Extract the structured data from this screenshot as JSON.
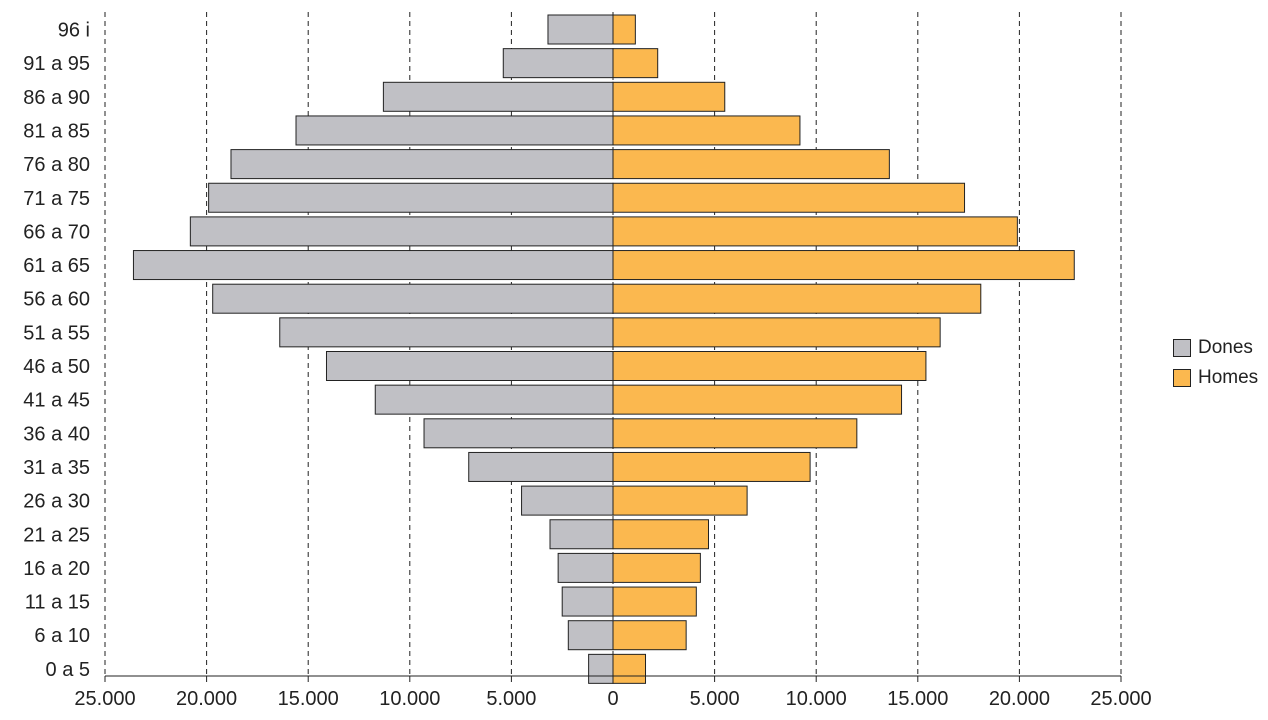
{
  "chart_data": {
    "type": "bar",
    "orientation": "horizontal-population-pyramid",
    "categories": [
      "96 i",
      "91 a 95",
      "86 a 90",
      "81 a 85",
      "76 a 80",
      "71 a 75",
      "66 a 70",
      "61 a 65",
      "56 a 60",
      "51 a 55",
      "46 a 50",
      "41 a 45",
      "36 a 40",
      "31 a 35",
      "26 a 30",
      "21 a 25",
      "16 a 20",
      "11 a 15",
      "6 a 10",
      "0 a 5"
    ],
    "series": [
      {
        "name": "Dones",
        "side": "left",
        "color": "#c0c0c5",
        "values": [
          3200,
          5400,
          11300,
          15600,
          18800,
          19900,
          20800,
          23600,
          19700,
          16400,
          14100,
          11700,
          9300,
          7100,
          4500,
          3100,
          2700,
          2500,
          2200,
          1200
        ]
      },
      {
        "name": "Homes",
        "side": "right",
        "color": "#fbb84f",
        "values": [
          1100,
          2200,
          5500,
          9200,
          13600,
          17300,
          19900,
          22700,
          18100,
          16100,
          15400,
          14200,
          12000,
          9700,
          6600,
          4700,
          4300,
          4100,
          3600,
          1600
        ]
      }
    ],
    "x_ticks": [
      "25.000",
      "20.000",
      "15.000",
      "10.000",
      "5.000",
      "0",
      "5.000",
      "10.000",
      "15.000",
      "20.000",
      "25.000"
    ],
    "xlim": [
      -25000,
      25000
    ],
    "grid": "vertical-dashed",
    "legend_position": "right",
    "title": "",
    "xlabel": "",
    "ylabel": ""
  },
  "legend": {
    "items": [
      {
        "label": "Dones",
        "color": "#c0c0c5"
      },
      {
        "label": "Homes",
        "color": "#fbb84f"
      }
    ]
  }
}
